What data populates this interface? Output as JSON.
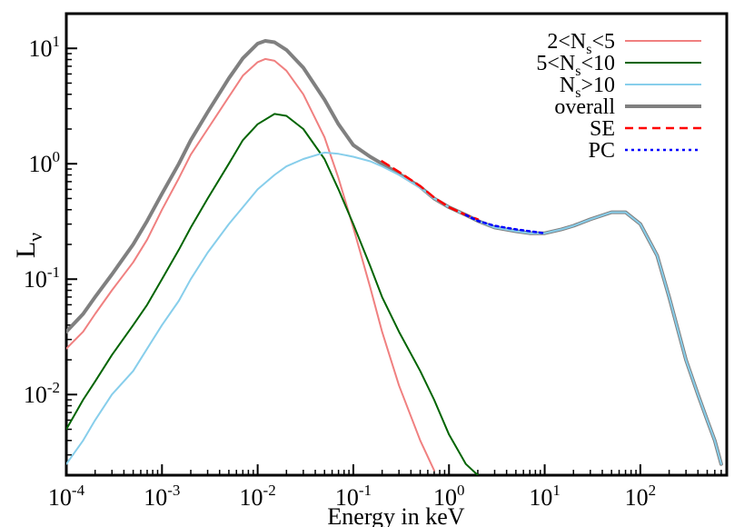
{
  "chart_data": {
    "type": "line",
    "title": "",
    "xlabel": "Energy in keV",
    "ylabel": "L",
    "ylabel_sub": "ν",
    "xscale": "log",
    "yscale": "log",
    "xlim": [
      0.0001,
      800
    ],
    "ylim": [
      0.002,
      20
    ],
    "grid": false,
    "legend_position": "top-right",
    "x_ticks": [
      {
        "base": "10",
        "exp": "-4",
        "value": 0.0001
      },
      {
        "base": "10",
        "exp": "-3",
        "value": 0.001
      },
      {
        "base": "10",
        "exp": "-2",
        "value": 0.01
      },
      {
        "base": "10",
        "exp": "-1",
        "value": 0.1
      },
      {
        "base": "10",
        "exp": "0",
        "value": 1
      },
      {
        "base": "10",
        "exp": "1",
        "value": 10
      },
      {
        "base": "10",
        "exp": "2",
        "value": 100
      }
    ],
    "y_ticks": [
      {
        "base": "10",
        "exp": "-2",
        "value": 0.01
      },
      {
        "base": "10",
        "exp": "-1",
        "value": 0.1
      },
      {
        "base": "10",
        "exp": "0",
        "value": 1
      },
      {
        "base": "10",
        "exp": "1",
        "value": 10
      }
    ],
    "series": [
      {
        "name": "2<Ns<5",
        "legend": {
          "pre": "2<N",
          "sub": "s",
          "post": "<5"
        },
        "color": "#f08080",
        "style": "solid",
        "x": [
          0.0001,
          0.00015,
          0.0002,
          0.0003,
          0.0005,
          0.0007,
          0.001,
          0.0015,
          0.002,
          0.003,
          0.005,
          0.007,
          0.01,
          0.012,
          0.015,
          0.02,
          0.03,
          0.05,
          0.07,
          0.1,
          0.15,
          0.2,
          0.3,
          0.5,
          0.7
        ],
        "y": [
          0.025,
          0.035,
          0.05,
          0.08,
          0.14,
          0.22,
          0.4,
          0.75,
          1.2,
          2.0,
          3.8,
          5.8,
          7.6,
          8.1,
          7.8,
          6.4,
          4.0,
          1.7,
          0.75,
          0.28,
          0.085,
          0.035,
          0.012,
          0.004,
          0.0022
        ]
      },
      {
        "name": "5<Ns<10",
        "legend": {
          "pre": "5<N",
          "sub": "s",
          "post": "<10"
        },
        "color": "#006400",
        "style": "solid",
        "x": [
          0.0001,
          0.00015,
          0.0002,
          0.0003,
          0.0005,
          0.0007,
          0.001,
          0.0015,
          0.002,
          0.003,
          0.005,
          0.007,
          0.01,
          0.015,
          0.02,
          0.03,
          0.05,
          0.07,
          0.1,
          0.15,
          0.2,
          0.3,
          0.5,
          0.7,
          1.0,
          1.5,
          2.0
        ],
        "y": [
          0.005,
          0.009,
          0.013,
          0.022,
          0.04,
          0.06,
          0.1,
          0.18,
          0.28,
          0.5,
          1.0,
          1.6,
          2.2,
          2.7,
          2.6,
          2.0,
          1.1,
          0.6,
          0.3,
          0.13,
          0.07,
          0.035,
          0.016,
          0.009,
          0.0045,
          0.0025,
          0.002
        ]
      },
      {
        "name": "Ns>10",
        "legend": {
          "pre": "N",
          "sub": "s",
          "post": ">10"
        },
        "color": "#87ceeb",
        "style": "solid",
        "x": [
          0.0001,
          0.00015,
          0.0002,
          0.0003,
          0.0005,
          0.0007,
          0.001,
          0.0015,
          0.002,
          0.003,
          0.005,
          0.007,
          0.01,
          0.015,
          0.02,
          0.03,
          0.05,
          0.07,
          0.1,
          0.15,
          0.2,
          0.3,
          0.5,
          0.7,
          1.0,
          1.5,
          2.0,
          3.0,
          5.0,
          7.0,
          10,
          15,
          20,
          30,
          50,
          70,
          100,
          150,
          200,
          300,
          400,
          500,
          600,
          700
        ],
        "y": [
          0.0025,
          0.004,
          0.006,
          0.01,
          0.016,
          0.025,
          0.04,
          0.065,
          0.1,
          0.17,
          0.3,
          0.42,
          0.6,
          0.8,
          0.95,
          1.1,
          1.25,
          1.22,
          1.15,
          1.05,
          0.95,
          0.8,
          0.62,
          0.5,
          0.42,
          0.36,
          0.32,
          0.28,
          0.26,
          0.25,
          0.25,
          0.27,
          0.29,
          0.33,
          0.38,
          0.38,
          0.3,
          0.16,
          0.07,
          0.02,
          0.01,
          0.006,
          0.004,
          0.0025
        ]
      },
      {
        "name": "overall",
        "legend": {
          "pre": "overall",
          "sub": "",
          "post": ""
        },
        "color": "#808080",
        "style": "thick",
        "x": [
          0.0001,
          0.00015,
          0.0002,
          0.0003,
          0.0005,
          0.0007,
          0.001,
          0.0015,
          0.002,
          0.003,
          0.005,
          0.007,
          0.01,
          0.012,
          0.015,
          0.02,
          0.03,
          0.05,
          0.07,
          0.1,
          0.15,
          0.2,
          0.3,
          0.5,
          0.7,
          1.0,
          1.5,
          2.0,
          3.0,
          5.0,
          7.0,
          10,
          15,
          20,
          30,
          50,
          70,
          100,
          150,
          200,
          300,
          400,
          500,
          600,
          700
        ],
        "y": [
          0.035,
          0.05,
          0.07,
          0.11,
          0.2,
          0.32,
          0.55,
          1.0,
          1.6,
          2.8,
          5.5,
          8.2,
          11.0,
          11.6,
          11.3,
          9.7,
          6.8,
          3.6,
          2.2,
          1.45,
          1.15,
          1.0,
          0.82,
          0.63,
          0.5,
          0.42,
          0.36,
          0.32,
          0.28,
          0.26,
          0.25,
          0.25,
          0.27,
          0.29,
          0.33,
          0.38,
          0.38,
          0.3,
          0.16,
          0.07,
          0.02,
          0.01,
          0.006,
          0.004,
          0.0025
        ]
      },
      {
        "name": "SE",
        "legend": {
          "pre": "SE",
          "sub": "",
          "post": ""
        },
        "color": "#ff0000",
        "style": "dashed",
        "x": [
          0.2,
          0.3,
          0.5,
          0.7,
          1.0,
          1.5,
          2.0
        ],
        "y": [
          1.05,
          0.85,
          0.64,
          0.51,
          0.42,
          0.36,
          0.33
        ]
      },
      {
        "name": "PC",
        "legend": {
          "pre": "PC",
          "sub": "",
          "post": ""
        },
        "color": "#0000ff",
        "style": "dotted",
        "x": [
          1.5,
          2.0,
          3.0,
          5.0,
          7.0,
          10
        ],
        "y": [
          0.36,
          0.32,
          0.29,
          0.27,
          0.26,
          0.25
        ]
      }
    ]
  }
}
